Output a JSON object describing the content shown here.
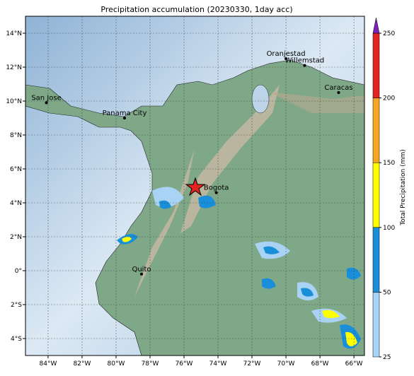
{
  "chart_data": {
    "type": "map",
    "title": "Precipitation accumulation (20230330, 1day acc)",
    "xlim": [
      -85.33,
      -65.38
    ],
    "ylim": [
      -5,
      15
    ],
    "xticks": [
      {
        "value": -84,
        "label": "84°W"
      },
      {
        "value": -82,
        "label": "82°W"
      },
      {
        "value": -80,
        "label": "80°W"
      },
      {
        "value": -78,
        "label": "78°W"
      },
      {
        "value": -76,
        "label": "76°W"
      },
      {
        "value": -74,
        "label": "74°W"
      },
      {
        "value": -72,
        "label": "72°W"
      },
      {
        "value": -70,
        "label": "70°W"
      },
      {
        "value": -68,
        "label": "68°W"
      },
      {
        "value": -66,
        "label": "66°W"
      }
    ],
    "yticks": [
      {
        "value": 14,
        "label": "14°N"
      },
      {
        "value": 12,
        "label": "12°N"
      },
      {
        "value": 10,
        "label": "10°N"
      },
      {
        "value": 8,
        "label": "8°N"
      },
      {
        "value": 6,
        "label": "6°N"
      },
      {
        "value": 4,
        "label": "4°N"
      },
      {
        "value": 2,
        "label": "2°N"
      },
      {
        "value": 0,
        "label": "0°"
      },
      {
        "value": -2,
        "label": "2°S"
      },
      {
        "value": -4,
        "label": "4°S"
      }
    ],
    "grid": true,
    "cities": [
      {
        "name": "San Jose",
        "lon": -84.1,
        "lat": 9.9
      },
      {
        "name": "Panama City",
        "lon": -79.5,
        "lat": 9.0
      },
      {
        "name": "Oranjestad",
        "lon": -70.0,
        "lat": 12.5
      },
      {
        "name": "Willemstad",
        "lon": -68.9,
        "lat": 12.1
      },
      {
        "name": "Caracas",
        "lon": -66.9,
        "lat": 10.5
      },
      {
        "name": "Bogota",
        "lon": -74.1,
        "lat": 4.6
      },
      {
        "name": "Quito",
        "lon": -78.5,
        "lat": -0.2
      }
    ],
    "colorbar": {
      "label": "Total Precipitation (mm)",
      "ticks": [
        25,
        50,
        100,
        150,
        200,
        250
      ],
      "colors": [
        "#a9d3f5",
        "#1a8fd9",
        "#ffff00",
        "#f5a623",
        "#e3231f"
      ],
      "extend_color": "#7b1fbe"
    }
  }
}
